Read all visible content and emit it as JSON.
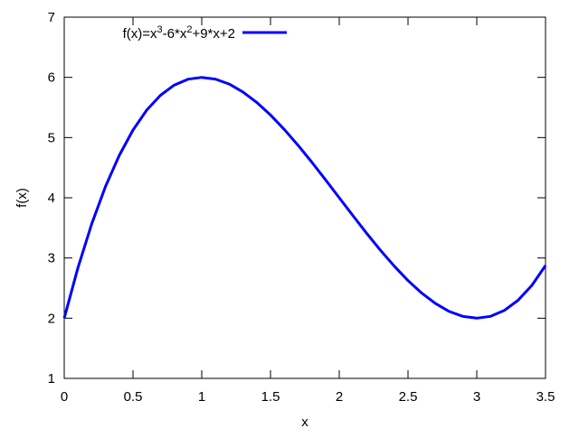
{
  "chart_data": {
    "type": "line",
    "title": "",
    "xlabel": "x",
    "ylabel": "f(x)",
    "xlim": [
      0,
      3.5
    ],
    "ylim": [
      1,
      7
    ],
    "xticks": [
      "0",
      "0.5",
      "1",
      "1.5",
      "2",
      "2.5",
      "3",
      "3.5"
    ],
    "yticks": [
      "1",
      "2",
      "3",
      "4",
      "5",
      "6",
      "7"
    ],
    "grid": false,
    "legend_position": "top-left",
    "series": [
      {
        "name": "f(x)=x^3-6*x^2+9*x+2",
        "legend_parts": [
          {
            "text": "f(x)=x",
            "sup": false
          },
          {
            "text": "3",
            "sup": true
          },
          {
            "text": "-6*x",
            "sup": false
          },
          {
            "text": "2",
            "sup": true
          },
          {
            "text": "+9*x+2",
            "sup": false
          }
        ],
        "color": "#0000ff",
        "x": [
          0,
          0.1,
          0.2,
          0.3,
          0.4,
          0.5,
          0.6,
          0.7,
          0.8,
          0.9,
          1.0,
          1.1,
          1.2,
          1.3,
          1.4,
          1.5,
          1.6,
          1.7,
          1.8,
          1.9,
          2.0,
          2.1,
          2.2,
          2.3,
          2.4,
          2.5,
          2.6,
          2.7,
          2.8,
          2.9,
          3.0,
          3.1,
          3.2,
          3.3,
          3.4,
          3.5
        ],
        "y": [
          2,
          2.841,
          3.568,
          4.187,
          4.704,
          5.125,
          5.456,
          5.703,
          5.872,
          5.969,
          6,
          5.971,
          5.888,
          5.757,
          5.584,
          5.375,
          5.136,
          4.873,
          4.592,
          4.299,
          4,
          3.701,
          3.408,
          3.127,
          2.864,
          2.625,
          2.416,
          2.243,
          2.112,
          2.029,
          2,
          2.031,
          2.128,
          2.297,
          2.544,
          2.875
        ]
      }
    ]
  }
}
